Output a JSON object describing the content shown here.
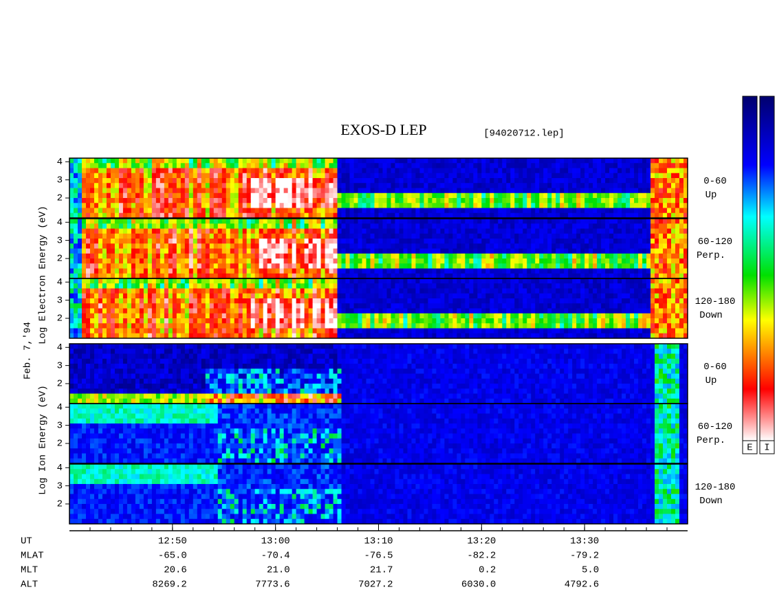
{
  "chart_data": {
    "type": "spectrogram",
    "title": "EXOS-D LEP",
    "subtitle": "[94020712.lep]",
    "date_label": "Feb. 7,'94",
    "electron_axis_label": "Log  Electron  Energy (eV)",
    "ion_axis_label": "Log  Ion  Energy (eV)",
    "ylim": [
      0.9,
      4.2
    ],
    "yticks": [
      2,
      3,
      4
    ],
    "xlim": [
      40,
      100
    ],
    "xticks": [
      {
        "value": 50,
        "label": "12:50"
      },
      {
        "value": 60,
        "label": "13:00"
      },
      {
        "value": 70,
        "label": "13:10"
      },
      {
        "value": 80,
        "label": "13:20"
      },
      {
        "value": 90,
        "label": "13:30"
      }
    ],
    "panels": [
      {
        "species": "electron",
        "angle": "0-60",
        "direction": "Up"
      },
      {
        "species": "electron",
        "angle": "60-120",
        "direction": "Perp."
      },
      {
        "species": "electron",
        "angle": "120-180",
        "direction": "Down"
      },
      {
        "species": "ion",
        "angle": "0-60",
        "direction": "Up"
      },
      {
        "species": "ion",
        "angle": "60-120",
        "direction": "Perp."
      },
      {
        "species": "ion",
        "angle": "120-180",
        "direction": "Down"
      }
    ],
    "ephemeris": [
      {
        "name": "UT"
      },
      {
        "name": "MLAT",
        "values": [
          "-65.0",
          "-70.4",
          "-76.5",
          "-82.2",
          "-79.2"
        ]
      },
      {
        "name": "MLT",
        "values": [
          "20.6",
          "21.0",
          "21.7",
          "0.2",
          "5.0"
        ]
      },
      {
        "name": "ALT",
        "values": [
          "8269.2",
          "7773.6",
          "7027.2",
          "6030.0",
          "4792.6"
        ]
      }
    ],
    "colorbars": [
      "E",
      "I"
    ]
  }
}
